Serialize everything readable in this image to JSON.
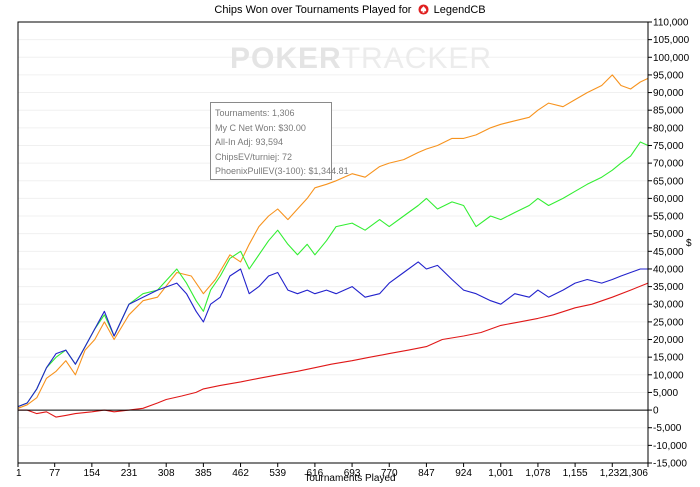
{
  "title": {
    "text": "Chips Won over Tournaments Played for",
    "player": "LegendCB"
  },
  "watermark": {
    "bold": "POKER",
    "light": "TRACKER"
  },
  "info_box": {
    "lines": [
      "Tournaments: 1,306",
      "My C Net Won: $30.00",
      "All-In Adj: 93,594",
      "ChipsEV/turniej: 72",
      "PhoenixPullEV(3-100): $1,344.81"
    ]
  },
  "colors": {
    "orange": "#f7931e",
    "green": "#33ee33",
    "blue": "#2222cc",
    "red": "#e01818",
    "zero_line": "#000000",
    "grid": "#f0f0f0"
  },
  "chart_data": {
    "type": "line",
    "title": "Chips Won over Tournaments Played for LegendCB",
    "xlabel": "Tournaments Played",
    "ylabel": "",
    "y_unit_label": "$",
    "xlim": [
      1,
      1306
    ],
    "ylim": [
      -15000,
      110000
    ],
    "x_ticks": [
      1,
      77,
      154,
      231,
      308,
      385,
      462,
      539,
      616,
      693,
      770,
      847,
      924,
      1001,
      1078,
      1155,
      1232,
      1306
    ],
    "x_tick_labels": [
      "1",
      "77",
      "154",
      "231",
      "308",
      "385",
      "462",
      "539",
      "616",
      "693",
      "770",
      "847",
      "924",
      "1,001",
      "1,078",
      "1,155",
      "1,232",
      "1,306"
    ],
    "y_ticks": [
      -15000,
      -10000,
      -5000,
      0,
      5000,
      10000,
      15000,
      20000,
      25000,
      30000,
      35000,
      40000,
      45000,
      50000,
      55000,
      60000,
      65000,
      70000,
      75000,
      80000,
      85000,
      90000,
      95000,
      100000,
      105000,
      110000
    ],
    "y_tick_labels": [
      "-15,000",
      "-10,000",
      "-5,000",
      "0",
      "5,000",
      "10,000",
      "15,000",
      "20,000",
      "25,000",
      "30,000",
      "35,000",
      "40,000",
      "45,000",
      "50,000",
      "55,000",
      "60,000",
      "65,000",
      "70,000",
      "75,000",
      "80,000",
      "85,000",
      "90,000",
      "95,000",
      "100,000",
      "105,000",
      "110,000"
    ],
    "series": [
      {
        "color": "#f7931e",
        "x": [
          1,
          20,
          40,
          60,
          80,
          100,
          120,
          140,
          160,
          180,
          200,
          231,
          260,
          290,
          330,
          360,
          385,
          410,
          440,
          462,
          480,
          500,
          520,
          539,
          560,
          580,
          600,
          616,
          640,
          660,
          693,
          720,
          750,
          770,
          800,
          830,
          847,
          870,
          900,
          924,
          950,
          980,
          1001,
          1030,
          1060,
          1078,
          1100,
          1130,
          1155,
          1180,
          1210,
          1232,
          1250,
          1270,
          1290,
          1306
        ],
        "values": [
          500,
          1500,
          3500,
          9000,
          11000,
          14000,
          10000,
          17000,
          20000,
          25000,
          20000,
          27000,
          31000,
          32000,
          39000,
          38000,
          33000,
          37000,
          44000,
          42000,
          47000,
          52000,
          55000,
          57000,
          54000,
          57000,
          60000,
          63000,
          64000,
          65000,
          67000,
          66000,
          69000,
          70000,
          71000,
          73000,
          74000,
          75000,
          77000,
          77000,
          78000,
          80000,
          81000,
          82000,
          83000,
          85000,
          87000,
          86000,
          88000,
          90000,
          92000,
          95000,
          92000,
          91000,
          93000,
          94000
        ]
      },
      {
        "color": "#33ee33",
        "x": [
          1,
          20,
          40,
          60,
          80,
          100,
          120,
          140,
          160,
          180,
          200,
          231,
          260,
          290,
          310,
          330,
          350,
          370,
          385,
          400,
          420,
          440,
          462,
          480,
          500,
          520,
          539,
          560,
          580,
          600,
          616,
          640,
          660,
          693,
          720,
          750,
          770,
          800,
          830,
          847,
          870,
          900,
          924,
          950,
          980,
          1001,
          1030,
          1060,
          1078,
          1100,
          1130,
          1155,
          1180,
          1210,
          1232,
          1250,
          1270,
          1290,
          1306
        ],
        "values": [
          1000,
          2000,
          6000,
          12000,
          15000,
          17000,
          13000,
          18000,
          23000,
          27000,
          21000,
          30000,
          33000,
          34000,
          37000,
          40000,
          36000,
          31000,
          28000,
          34000,
          38000,
          43000,
          45000,
          40000,
          44000,
          48000,
          51000,
          47000,
          44000,
          47000,
          44000,
          48000,
          52000,
          53000,
          51000,
          54000,
          52000,
          55000,
          58000,
          60000,
          57000,
          59000,
          58000,
          52000,
          55000,
          54000,
          56000,
          58000,
          60000,
          58000,
          60000,
          62000,
          64000,
          66000,
          68000,
          70000,
          72000,
          76000,
          75000
        ]
      },
      {
        "color": "#2222cc",
        "x": [
          1,
          20,
          40,
          60,
          80,
          100,
          120,
          140,
          160,
          180,
          200,
          231,
          260,
          290,
          310,
          330,
          350,
          370,
          385,
          400,
          420,
          440,
          462,
          480,
          500,
          520,
          539,
          560,
          580,
          600,
          616,
          640,
          660,
          693,
          720,
          750,
          770,
          800,
          830,
          847,
          870,
          900,
          924,
          950,
          980,
          1001,
          1030,
          1060,
          1078,
          1100,
          1130,
          1155,
          1180,
          1210,
          1232,
          1250,
          1270,
          1290,
          1306
        ],
        "values": [
          1000,
          2000,
          6000,
          12000,
          16000,
          17000,
          13000,
          18000,
          23000,
          28000,
          21000,
          30000,
          32000,
          34000,
          35000,
          36000,
          33000,
          28000,
          25000,
          30000,
          32000,
          38000,
          40000,
          33000,
          35000,
          38000,
          39000,
          34000,
          33000,
          34000,
          33000,
          34000,
          33000,
          35000,
          32000,
          33000,
          36000,
          39000,
          42000,
          40000,
          41000,
          37000,
          34000,
          33000,
          31000,
          30000,
          33000,
          32000,
          34000,
          32000,
          34000,
          36000,
          37000,
          36000,
          37000,
          38000,
          39000,
          40000,
          40000
        ]
      },
      {
        "color": "#e01818",
        "x": [
          1,
          20,
          40,
          60,
          80,
          100,
          120,
          154,
          180,
          200,
          231,
          260,
          290,
          308,
          340,
          370,
          385,
          420,
          462,
          500,
          539,
          580,
          616,
          650,
          693,
          730,
          770,
          810,
          847,
          880,
          924,
          960,
          1001,
          1040,
          1078,
          1110,
          1155,
          1190,
          1232,
          1270,
          1306
        ],
        "values": [
          0,
          0,
          -1000,
          -500,
          -2000,
          -1500,
          -1000,
          -500,
          0,
          -500,
          0,
          500,
          2000,
          3000,
          4000,
          5000,
          6000,
          7000,
          8000,
          9000,
          10000,
          11000,
          12000,
          13000,
          14000,
          15000,
          16000,
          17000,
          18000,
          20000,
          21000,
          22000,
          24000,
          25000,
          26000,
          27000,
          29000,
          30000,
          32000,
          34000,
          36000
        ]
      }
    ],
    "grid": false,
    "legend": "none"
  }
}
